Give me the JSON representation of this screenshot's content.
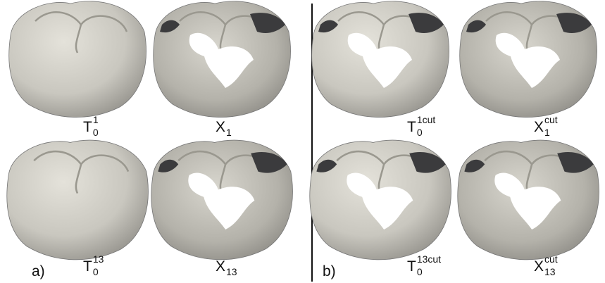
{
  "panels": [
    {
      "label": "a)",
      "items": [
        {
          "base": "T",
          "sub": "0",
          "sup": "1"
        },
        {
          "base": "X",
          "sub": "1"
        },
        {
          "base": "T",
          "sub": "0",
          "sup": "13"
        },
        {
          "base": "X",
          "sub": "13"
        }
      ]
    },
    {
      "label": "b)",
      "items": [
        {
          "base": "T",
          "sub": "0",
          "sup": "1cut"
        },
        {
          "base": "X",
          "sub": "1",
          "sup": "cut"
        },
        {
          "base": "T",
          "sub": "0",
          "sup": "13cut"
        },
        {
          "base": "X",
          "sub": "13",
          "sup": "cut"
        }
      ]
    }
  ]
}
